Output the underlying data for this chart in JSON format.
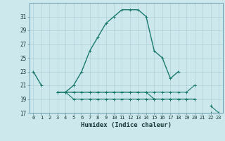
{
  "xlabel": "Humidex (Indice chaleur)",
  "background_color": "#cce8ec",
  "line_color": "#1a7a6e",
  "grid_color": "#b0d0d8",
  "x_values": [
    0,
    1,
    2,
    3,
    4,
    5,
    6,
    7,
    8,
    9,
    10,
    11,
    12,
    13,
    14,
    15,
    16,
    17,
    18,
    19,
    20,
    21,
    22,
    23
  ],
  "series_main": [
    23,
    21,
    null,
    20,
    20,
    21,
    23,
    26,
    28,
    30,
    31,
    32,
    32,
    32,
    31,
    26,
    25,
    22,
    23,
    null,
    21,
    null,
    null,
    null
  ],
  "series_a": [
    null,
    null,
    null,
    20,
    20,
    20,
    20,
    20,
    20,
    20,
    20,
    20,
    20,
    20,
    20,
    20,
    20,
    20,
    20,
    20,
    21,
    null,
    null,
    null
  ],
  "series_b": [
    null,
    null,
    null,
    20,
    20,
    20,
    20,
    20,
    20,
    20,
    20,
    20,
    20,
    20,
    20,
    19,
    19,
    19,
    19,
    19,
    19,
    null,
    18,
    17
  ],
  "series_c": [
    null,
    null,
    null,
    20,
    20,
    19,
    19,
    19,
    19,
    19,
    19,
    19,
    19,
    19,
    19,
    19,
    19,
    19,
    19,
    19,
    19,
    null,
    17,
    17
  ],
  "ylim": [
    17,
    33
  ],
  "yticks": [
    17,
    19,
    21,
    23,
    25,
    27,
    29,
    31
  ],
  "xticks": [
    0,
    1,
    2,
    3,
    4,
    5,
    6,
    7,
    8,
    9,
    10,
    11,
    12,
    13,
    14,
    15,
    16,
    17,
    18,
    19,
    20,
    21,
    22,
    23
  ]
}
